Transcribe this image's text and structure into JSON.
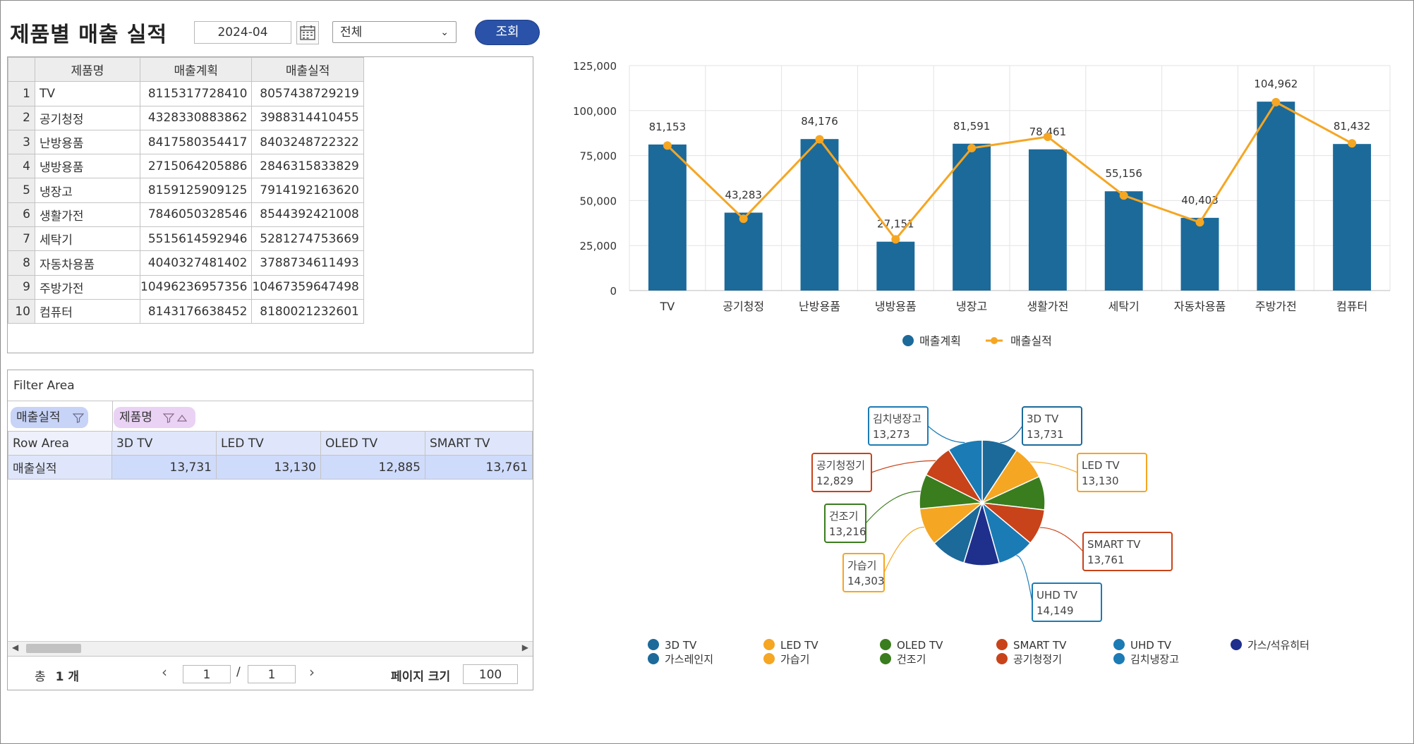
{
  "header": {
    "title": "제품별 매출 실적",
    "date": "2024-04",
    "filter_selected": "전체",
    "search_label": "조회"
  },
  "grid": {
    "columns": [
      "제품명",
      "매출계획",
      "매출실적"
    ],
    "rows": [
      {
        "no": "1",
        "name": "TV",
        "plan": "8115317728410",
        "actual": "8057438729219"
      },
      {
        "no": "2",
        "name": "공기청정",
        "plan": "4328330883862",
        "actual": "3988314410455"
      },
      {
        "no": "3",
        "name": "난방용품",
        "plan": "8417580354417",
        "actual": "8403248722322"
      },
      {
        "no": "4",
        "name": "냉방용품",
        "plan": "2715064205886",
        "actual": "2846315833829"
      },
      {
        "no": "5",
        "name": "냉장고",
        "plan": "8159125909125",
        "actual": "7914192163620"
      },
      {
        "no": "6",
        "name": "생활가전",
        "plan": "7846050328546",
        "actual": "8544392421008"
      },
      {
        "no": "7",
        "name": "세탁기",
        "plan": "5515614592946",
        "actual": "5281274753669"
      },
      {
        "no": "8",
        "name": "자동차용품",
        "plan": "4040327481402",
        "actual": "3788734611493"
      },
      {
        "no": "9",
        "name": "주방가전",
        "plan": "10496236957356",
        "actual": "10467359647498"
      },
      {
        "no": "10",
        "name": "컴퓨터",
        "plan": "8143176638452",
        "actual": "8180021232601"
      }
    ]
  },
  "pivot": {
    "filter_area_label": "Filter Area",
    "chip_value": "매출실적",
    "chip_column": "제품명",
    "row_area_label": "Row Area",
    "columns": [
      "3D TV",
      "LED TV",
      "OLED TV",
      "SMART TV"
    ],
    "row_label": "매출실적",
    "values": [
      "13,731",
      "13,130",
      "12,885",
      "13,761"
    ],
    "footer": {
      "total_label": "총",
      "total_count": "1 개",
      "page_current": "1",
      "page_separator": "/",
      "page_total": "1",
      "page_size_label": "페이지 크기",
      "page_size": "100"
    }
  },
  "colors": {
    "bar": "#1c6a9a",
    "line": "#f5a623",
    "accent_button": "#2a52a8"
  },
  "chart_data": [
    {
      "type": "bar",
      "categories": [
        "TV",
        "공기청정",
        "난방용품",
        "냉방용품",
        "냉장고",
        "생활가전",
        "세탁기",
        "자동차용품",
        "주방가전",
        "컴퓨터"
      ],
      "series": [
        {
          "name": "매출계획",
          "type": "bar",
          "values": [
            81153,
            43283,
            84176,
            27151,
            81591,
            78461,
            55156,
            40403,
            104962,
            81432
          ]
        },
        {
          "name": "매출실적",
          "type": "line",
          "values": [
            80574,
            39883,
            84032,
            28463,
            79142,
            85444,
            52813,
            37887,
            104674,
            81800
          ]
        }
      ],
      "data_labels": [
        "81,153",
        "43,283",
        "84,176",
        "27,151",
        "81,591",
        "78,461",
        "55,156",
        "40,403",
        "104,962",
        "81,432"
      ],
      "y_ticks": [
        "0",
        "25,000",
        "50,000",
        "75,000",
        "100,000",
        "125,000"
      ],
      "ylim": [
        0,
        125000
      ],
      "grid": true,
      "legend": "bottom"
    },
    {
      "type": "pie",
      "labels": [
        "3D TV",
        "LED TV",
        "OLED TV",
        "SMART TV",
        "UHD TV",
        "가스/석유히터",
        "가스레인지",
        "가습기",
        "건조기",
        "공기청정기",
        "김치냉장고"
      ],
      "values": [
        13731,
        13130,
        12885,
        13761,
        14149,
        13500,
        13500,
        14303,
        13216,
        12829,
        13273
      ],
      "callouts": [
        {
          "label": "3D TV",
          "value": "13,731"
        },
        {
          "label": "LED TV",
          "value": "13,130"
        },
        {
          "label": "SMART TV",
          "value": "13,761"
        },
        {
          "label": "UHD TV",
          "value": "14,149"
        },
        {
          "label": "가습기",
          "value": "14,303"
        },
        {
          "label": "건조기",
          "value": "13,216"
        },
        {
          "label": "공기청정기",
          "value": "12,829"
        },
        {
          "label": "김치냉장고",
          "value": "13,273"
        }
      ],
      "colors": [
        "#1c6a9a",
        "#f5a623",
        "#3a7d1e",
        "#c8431a",
        "#1b7bb5",
        "#1f2f8c",
        "#1c6a9a",
        "#f5a623",
        "#3a7d1e",
        "#c8431a",
        "#1b7bb5"
      ],
      "legend": "bottom"
    }
  ]
}
